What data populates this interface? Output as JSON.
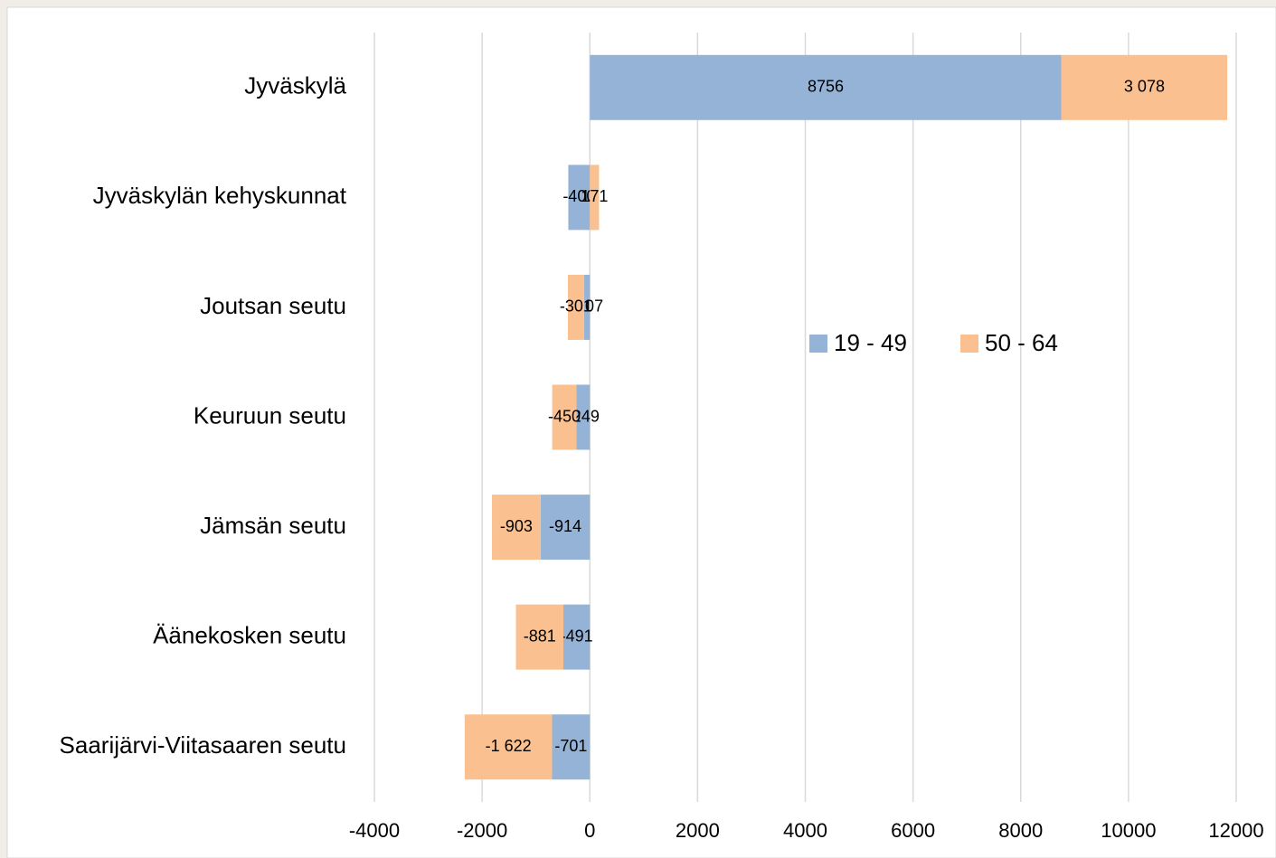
{
  "chart_data": {
    "type": "stacked_barh",
    "categories": [
      "Jyväskylä",
      "Jyväskylän kehyskunnat",
      "Joutsan seutu",
      "Keuruun seutu",
      "Jämsän seutu",
      "Äänekosken seutu",
      "Saarijärvi-Viitasaaren seutu"
    ],
    "series": [
      {
        "name": "19 - 49",
        "color": "#95b3d7",
        "values": [
          8756,
          -400,
          -107,
          -249,
          -914,
          -491,
          -701
        ]
      },
      {
        "name": "50 - 64",
        "color": "#fac090",
        "values": [
          3078,
          171,
          -301,
          -450,
          -903,
          -881,
          -1622
        ],
        "value_labels": [
          "3 078",
          "171",
          "-301",
          "-450",
          "-903",
          "-881",
          "-1 622"
        ]
      }
    ],
    "xlim": [
      -4000,
      12000
    ],
    "xticks": [
      -4000,
      -2000,
      0,
      2000,
      4000,
      6000,
      8000,
      10000,
      12000
    ],
    "grid": true
  }
}
